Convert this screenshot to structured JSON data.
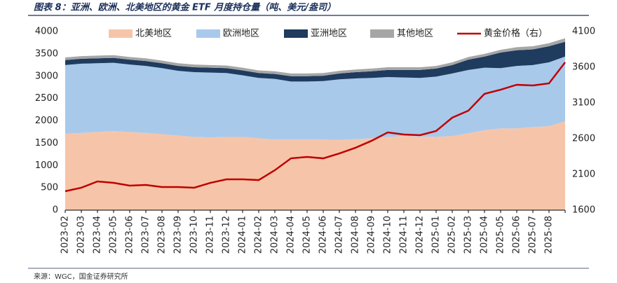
{
  "chart_data": {
    "type": "area",
    "title": "图表 8：亚洲、欧洲、北美地区的黄金 ETF 月度持仓量（吨、美元/盎司）",
    "source": "来源：WGC，国金证券研究所",
    "categories": [
      "2023-02",
      "2023-03",
      "2023-04",
      "2023-05",
      "2023-06",
      "2023-07",
      "2023-08",
      "2023-09",
      "2023-10",
      "2023-11",
      "2023-12",
      "2024-01",
      "2024-02",
      "2024-03",
      "2024-04",
      "2024-05",
      "2024-06",
      "2024-07",
      "2024-08",
      "2024-09",
      "2024-10",
      "2024-11",
      "2024-12",
      "2025-01",
      "2025-02",
      "2025-03",
      "2025-04",
      "2025-05",
      "2025-06",
      "2025-07",
      "2025-08",
      null
    ],
    "series": [
      {
        "name": "北美地区",
        "color": "#f6c5a9",
        "values": [
          1710,
          1730,
          1750,
          1770,
          1750,
          1730,
          1700,
          1670,
          1640,
          1630,
          1640,
          1640,
          1610,
          1580,
          1580,
          1580,
          1580,
          1570,
          1590,
          1610,
          1640,
          1660,
          1650,
          1640,
          1660,
          1720,
          1790,
          1830,
          1830,
          1860,
          1880,
          1990
        ]
      },
      {
        "name": "欧洲地区",
        "color": "#a9c9eb",
        "values": [
          1540,
          1550,
          1540,
          1530,
          1510,
          1500,
          1480,
          1450,
          1450,
          1450,
          1430,
          1380,
          1350,
          1360,
          1300,
          1300,
          1310,
          1360,
          1360,
          1350,
          1340,
          1310,
          1310,
          1350,
          1400,
          1420,
          1400,
          1350,
          1400,
          1390,
          1430,
          1450
        ]
      },
      {
        "name": "亚洲地区",
        "color": "#1f3b5e",
        "values": [
          110,
          110,
          110,
          110,
          110,
          110,
          110,
          110,
          110,
          110,
          110,
          110,
          110,
          110,
          120,
          120,
          120,
          130,
          140,
          150,
          160,
          170,
          180,
          180,
          190,
          230,
          250,
          350,
          350,
          350,
          360,
          330
        ]
      },
      {
        "name": "其他地区",
        "color": "#a6a6a6",
        "values": [
          60,
          60,
          60,
          60,
          60,
          60,
          60,
          60,
          60,
          60,
          60,
          60,
          60,
          60,
          60,
          60,
          60,
          60,
          60,
          60,
          60,
          60,
          60,
          60,
          60,
          60,
          60,
          60,
          70,
          70,
          70,
          80
        ]
      },
      {
        "name": "黄金价格（右）",
        "color": "#c00000",
        "type": "line",
        "axis": "y2",
        "values": [
          1865,
          1914,
          2002,
          1982,
          1943,
          1953,
          1924,
          1924,
          1914,
          1982,
          2031,
          2031,
          2021,
          2159,
          2325,
          2345,
          2325,
          2394,
          2473,
          2571,
          2688,
          2659,
          2649,
          2708,
          2894,
          2992,
          3227,
          3286,
          3355,
          3345,
          3375,
          3669
        ]
      }
    ],
    "ylim": [
      0,
      4000
    ],
    "yticks": [
      0,
      500,
      1000,
      1500,
      2000,
      2500,
      3000,
      3500,
      4000
    ],
    "y2lim": [
      1600,
      4100
    ],
    "y2ticks": [
      1600,
      2100,
      2600,
      3100,
      3600,
      4100
    ],
    "stacked": true,
    "grid": false
  }
}
